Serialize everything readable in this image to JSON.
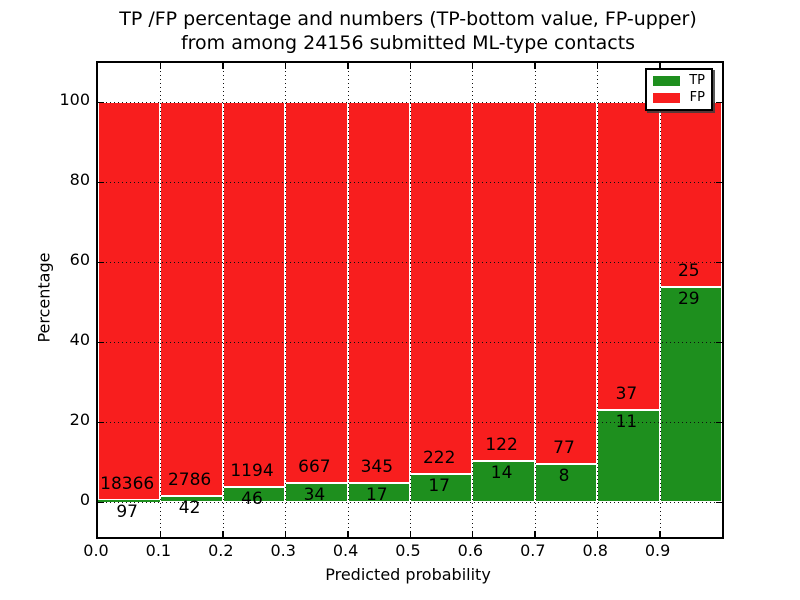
{
  "title": {
    "line1": "TP /FP percentage and numbers (TP-bottom value, FP-upper)",
    "line2": "from among 24156 submitted ML-type contacts"
  },
  "chart_data": {
    "type": "bar",
    "stacked": true,
    "normalized": "each bin scaled to 100%",
    "title": "TP /FP percentage and numbers (TP-bottom value, FP-upper) from among 24156 submitted ML-type contacts",
    "xlabel": "Predicted probability",
    "ylabel": "Percentage",
    "total_contacts": 24156,
    "bin_width": 0.1,
    "bin_left_edges": [
      0.0,
      0.1,
      0.2,
      0.3,
      0.4,
      0.5,
      0.6,
      0.7,
      0.8,
      0.9
    ],
    "x_tick_labels": [
      "0.0",
      "0.1",
      "0.2",
      "0.3",
      "0.4",
      "0.5",
      "0.6",
      "0.7",
      "0.8",
      "0.9"
    ],
    "y_ticks": [
      0,
      20,
      40,
      60,
      80,
      100
    ],
    "xlim": [
      0.0,
      1.0
    ],
    "ylim": [
      -9,
      110
    ],
    "grid": "dotted black, both axes",
    "legend_position": "upper right",
    "bar_edge_color": "#ffffff",
    "series": [
      {
        "name": "TP",
        "color": "#1e8f1e",
        "position": "bottom",
        "counts": [
          97,
          42,
          46,
          34,
          17,
          17,
          14,
          8,
          11,
          29
        ]
      },
      {
        "name": "FP",
        "color": "#f81e1e",
        "position": "top",
        "counts": [
          18366,
          2786,
          1194,
          667,
          345,
          222,
          122,
          77,
          37,
          25
        ]
      }
    ]
  }
}
